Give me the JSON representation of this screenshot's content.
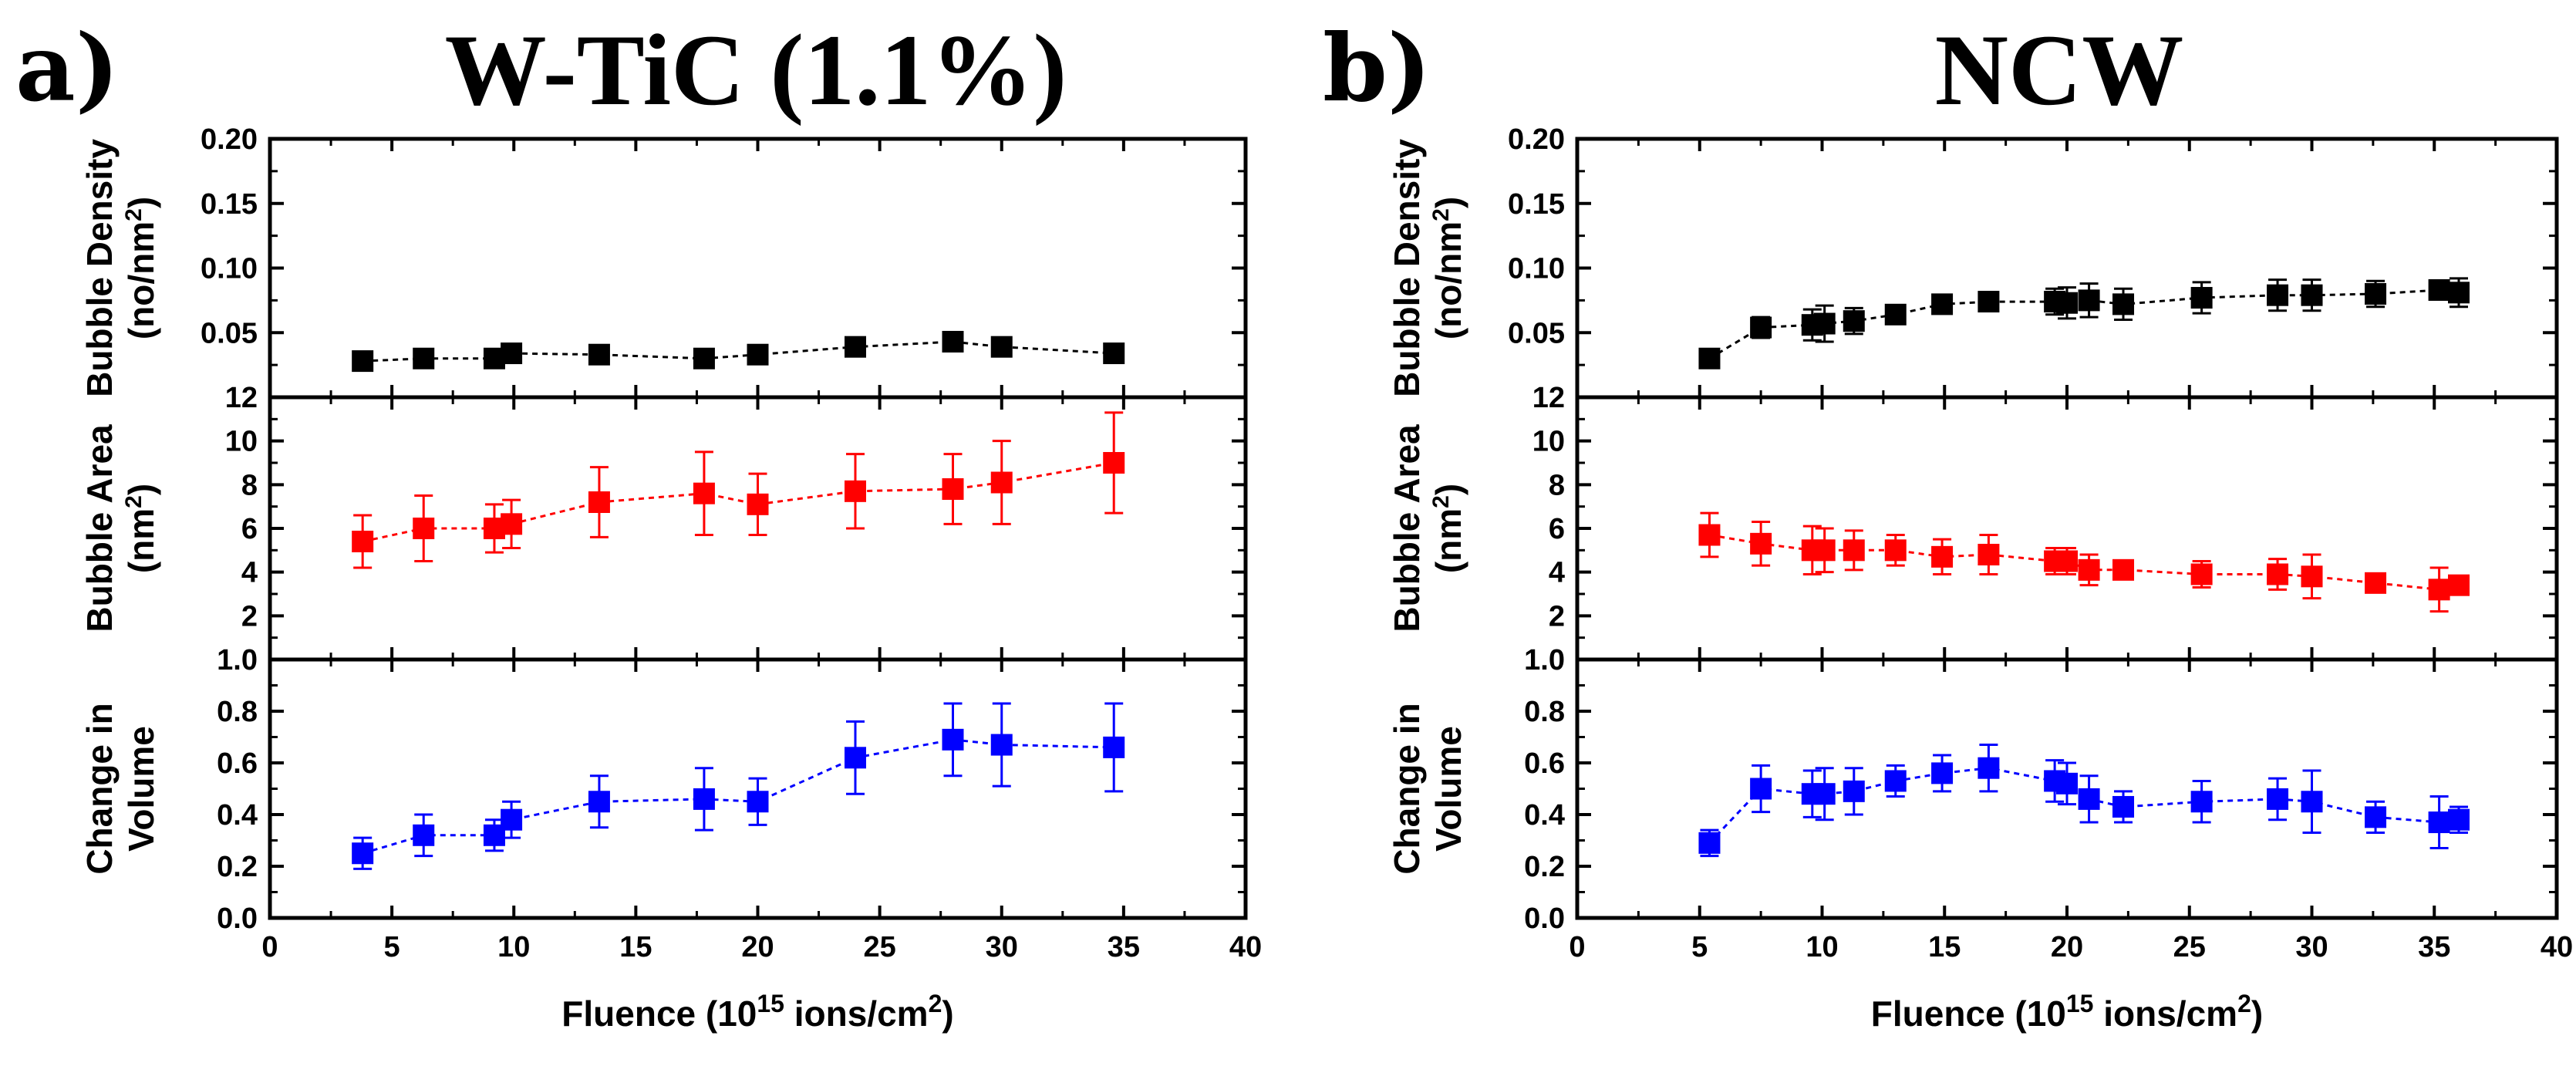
{
  "chart_data": [
    {
      "panel_label": "a)",
      "title": "W-TiC (1.1%)",
      "type": "scatter",
      "xlabel": "Fluence (10^15 ions/cm^2)",
      "xlabel_parts": {
        "pre": "Fluence (10",
        "sup1": "15",
        "mid": " ions/cm",
        "sup2": "2",
        "post": ")"
      },
      "xlim": [
        0,
        40
      ],
      "xticks": [
        0,
        5,
        10,
        15,
        20,
        25,
        30,
        35,
        40
      ],
      "subplots": [
        {
          "name": "bubble-density",
          "ylabel_line1": "Bubble Density",
          "ylabel_line2_pre": "(no/nm",
          "ylabel_line2_sup": "2",
          "ylabel_line2_post": ")",
          "ylim": [
            0.0,
            0.2
          ],
          "yticks": [
            0.05,
            0.1,
            0.15,
            0.2
          ],
          "ytick_labels": [
            "0.05",
            "0.10",
            "0.15",
            "0.20"
          ],
          "color": "#000000",
          "x": [
            3.8,
            6.3,
            9.2,
            9.9,
            13.5,
            17.8,
            20,
            24,
            28,
            30,
            34.6
          ],
          "y": [
            0.028,
            0.03,
            0.03,
            0.034,
            0.033,
            0.03,
            0.033,
            0.039,
            0.043,
            0.039,
            0.034
          ],
          "err": [
            0,
            0,
            0,
            0,
            0,
            0,
            0,
            0,
            0,
            0,
            0
          ]
        },
        {
          "name": "bubble-area",
          "ylabel_line1": "Bubble Area",
          "ylabel_line2_pre": "(nm",
          "ylabel_line2_sup": "2",
          "ylabel_line2_post": ")",
          "ylim": [
            0,
            12
          ],
          "yticks": [
            2,
            4,
            6,
            8,
            10,
            12
          ],
          "ytick_labels": [
            "2",
            "4",
            "6",
            "8",
            "10",
            "12"
          ],
          "color": "#ff0000",
          "x": [
            3.8,
            6.3,
            9.2,
            9.9,
            13.5,
            17.8,
            20,
            24,
            28,
            30,
            34.6
          ],
          "y": [
            5.4,
            6.0,
            6.0,
            6.2,
            7.2,
            7.6,
            7.1,
            7.7,
            7.8,
            8.1,
            9.0
          ],
          "err": [
            1.2,
            1.5,
            1.1,
            1.1,
            1.6,
            1.9,
            1.4,
            1.7,
            1.6,
            1.9,
            2.3
          ]
        },
        {
          "name": "change-in-volume",
          "ylabel_line1": "Change in",
          "ylabel_line2_pre": "Volume",
          "ylabel_line2_sup": "",
          "ylabel_line2_post": "",
          "ylim": [
            0.0,
            1.0
          ],
          "yticks": [
            0.0,
            0.2,
            0.4,
            0.6,
            0.8,
            1.0
          ],
          "ytick_labels": [
            "0.0",
            "0.2",
            "0.4",
            "0.6",
            "0.8",
            "1.0"
          ],
          "color": "#0000ff",
          "x": [
            3.8,
            6.3,
            9.2,
            9.9,
            13.5,
            17.8,
            20,
            24,
            28,
            30,
            34.6
          ],
          "y": [
            0.25,
            0.32,
            0.32,
            0.38,
            0.45,
            0.46,
            0.45,
            0.62,
            0.69,
            0.67,
            0.66
          ],
          "err": [
            0.06,
            0.08,
            0.06,
            0.07,
            0.1,
            0.12,
            0.09,
            0.14,
            0.14,
            0.16,
            0.17
          ]
        }
      ]
    },
    {
      "panel_label": "b)",
      "title": "NCW",
      "type": "scatter",
      "xlabel": "Fluence (10^15 ions/cm^2)",
      "xlabel_parts": {
        "pre": "Fluence (10",
        "sup1": "15",
        "mid": " ions/cm",
        "sup2": "2",
        "post": ")"
      },
      "xlim": [
        0,
        40
      ],
      "xticks": [
        0,
        5,
        10,
        15,
        20,
        25,
        30,
        35,
        40
      ],
      "subplots": [
        {
          "name": "bubble-density",
          "ylabel_line1": "Bubble Density",
          "ylabel_line2_pre": "(no/nm",
          "ylabel_line2_sup": "2",
          "ylabel_line2_post": ")",
          "ylim": [
            0.0,
            0.2
          ],
          "yticks": [
            0.05,
            0.1,
            0.15,
            0.2
          ],
          "ytick_labels": [
            "0.05",
            "0.10",
            "0.15",
            "0.20"
          ],
          "color": "#000000",
          "x": [
            5.4,
            7.5,
            9.6,
            10.1,
            11.3,
            13.0,
            14.9,
            16.8,
            19.5,
            20.0,
            20.9,
            22.3,
            25.5,
            28.6,
            30.0,
            32.6,
            35.2,
            36.0
          ],
          "y": [
            0.03,
            0.054,
            0.056,
            0.057,
            0.059,
            0.064,
            0.072,
            0.074,
            0.074,
            0.073,
            0.075,
            0.072,
            0.077,
            0.079,
            0.079,
            0.08,
            0.083,
            0.081
          ],
          "err": [
            0.003,
            0.008,
            0.012,
            0.014,
            0.01,
            0.006,
            0.005,
            0.006,
            0.01,
            0.012,
            0.013,
            0.012,
            0.012,
            0.012,
            0.012,
            0.01,
            0.005,
            0.011
          ]
        },
        {
          "name": "bubble-area",
          "ylabel_line1": "Bubble Area",
          "ylabel_line2_pre": "(nm",
          "ylabel_line2_sup": "2",
          "ylabel_line2_post": ")",
          "ylim": [
            0,
            12
          ],
          "yticks": [
            2,
            4,
            6,
            8,
            10,
            12
          ],
          "ytick_labels": [
            "2",
            "4",
            "6",
            "8",
            "10",
            "12"
          ],
          "color": "#ff0000",
          "x": [
            5.4,
            7.5,
            9.6,
            10.1,
            11.3,
            13.0,
            14.9,
            16.8,
            19.5,
            20.0,
            20.9,
            22.3,
            25.5,
            28.6,
            30.0,
            32.6,
            35.2,
            36.0
          ],
          "y": [
            5.7,
            5.3,
            5.0,
            5.0,
            5.0,
            5.0,
            4.7,
            4.8,
            4.5,
            4.5,
            4.1,
            4.1,
            3.9,
            3.9,
            3.8,
            3.5,
            3.2,
            3.4
          ],
          "err": [
            1.0,
            1.0,
            1.1,
            1.0,
            0.9,
            0.7,
            0.8,
            0.9,
            0.6,
            0.6,
            0.7,
            0.3,
            0.6,
            0.7,
            1.0,
            0.4,
            1.0,
            0.3
          ]
        },
        {
          "name": "change-in-volume",
          "ylabel_line1": "Change in",
          "ylabel_line2_pre": "Volume",
          "ylabel_line2_sup": "",
          "ylabel_line2_post": "",
          "ylim": [
            0.0,
            1.0
          ],
          "yticks": [
            0.0,
            0.2,
            0.4,
            0.6,
            0.8,
            1.0
          ],
          "ytick_labels": [
            "0.0",
            "0.2",
            "0.4",
            "0.6",
            "0.8",
            "1.0"
          ],
          "color": "#0000ff",
          "x": [
            5.4,
            7.5,
            9.6,
            10.1,
            11.3,
            13.0,
            14.9,
            16.8,
            19.5,
            20.0,
            20.9,
            22.3,
            25.5,
            28.6,
            30.0,
            32.6,
            35.2,
            36.0
          ],
          "y": [
            0.29,
            0.5,
            0.48,
            0.48,
            0.49,
            0.53,
            0.56,
            0.58,
            0.53,
            0.52,
            0.46,
            0.43,
            0.45,
            0.46,
            0.45,
            0.39,
            0.37,
            0.38
          ],
          "err": [
            0.05,
            0.09,
            0.09,
            0.1,
            0.09,
            0.06,
            0.07,
            0.09,
            0.08,
            0.08,
            0.09,
            0.06,
            0.08,
            0.08,
            0.12,
            0.06,
            0.1,
            0.05
          ]
        }
      ]
    }
  ]
}
